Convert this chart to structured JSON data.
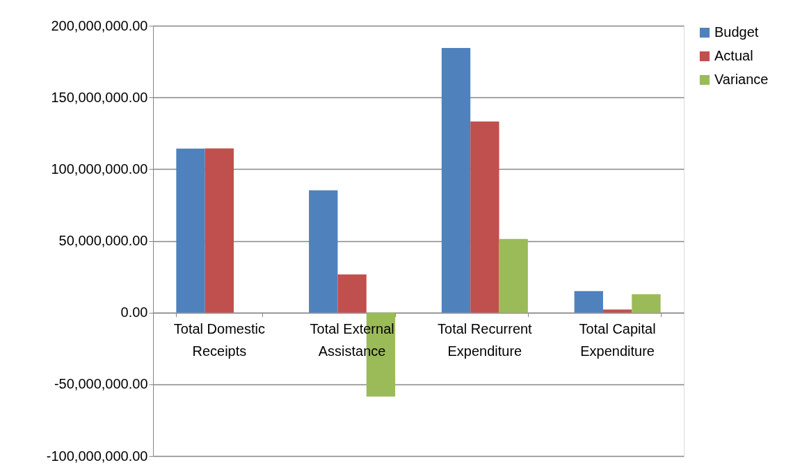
{
  "chart_data": {
    "type": "bar",
    "categories": [
      "Total Domestic Receipts",
      "Total External Assistance",
      "Total Recurrent Expenditure",
      "Total Capital Expenditure"
    ],
    "series": [
      {
        "name": "Budget",
        "color": "#4f81bd",
        "values": [
          114300000,
          85200000,
          184500000,
          15000000
        ]
      },
      {
        "name": "Actual",
        "color": "#c0504d",
        "values": [
          114500000,
          26600000,
          133200000,
          2200000
        ]
      },
      {
        "name": "Variance",
        "color": "#9bbb59",
        "values": [
          0,
          -58600000,
          51300000,
          12800000
        ]
      }
    ],
    "ylim": [
      -100000000,
      200000000
    ],
    "yticks": [
      {
        "value": -100000000,
        "label": "-100,000,000.00"
      },
      {
        "value": -50000000,
        "label": "-50,000,000.00"
      },
      {
        "value": 0,
        "label": "0.00"
      },
      {
        "value": 50000000,
        "label": "50,000,000.00"
      },
      {
        "value": 100000000,
        "label": "100,000,000.00"
      },
      {
        "value": 150000000,
        "label": "150,000,000.00"
      },
      {
        "value": 200000000,
        "label": "200,000,000.00"
      }
    ],
    "grid": "y",
    "legend": "right"
  }
}
